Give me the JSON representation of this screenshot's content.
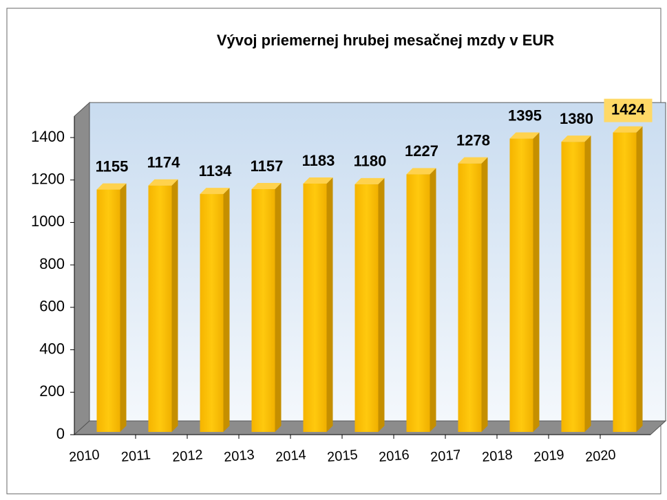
{
  "chart_data": {
    "type": "bar3d",
    "title": "Vývoj priemernej hrubej mesačnej mzdy v EUR",
    "categories": [
      "2010",
      "2011",
      "2012",
      "2013",
      "2014",
      "2015",
      "2016",
      "2017",
      "2018",
      "2019",
      "2020"
    ],
    "values": [
      1155,
      1174,
      1134,
      1157,
      1183,
      1180,
      1227,
      1278,
      1395,
      1380,
      1424
    ],
    "color": "#ffc000",
    "ylim": [
      0,
      1500
    ],
    "yticks": [
      0,
      200,
      400,
      600,
      800,
      1000,
      1200,
      1400
    ],
    "highlight_index": 10,
    "highlight_color": "#ffd966"
  }
}
